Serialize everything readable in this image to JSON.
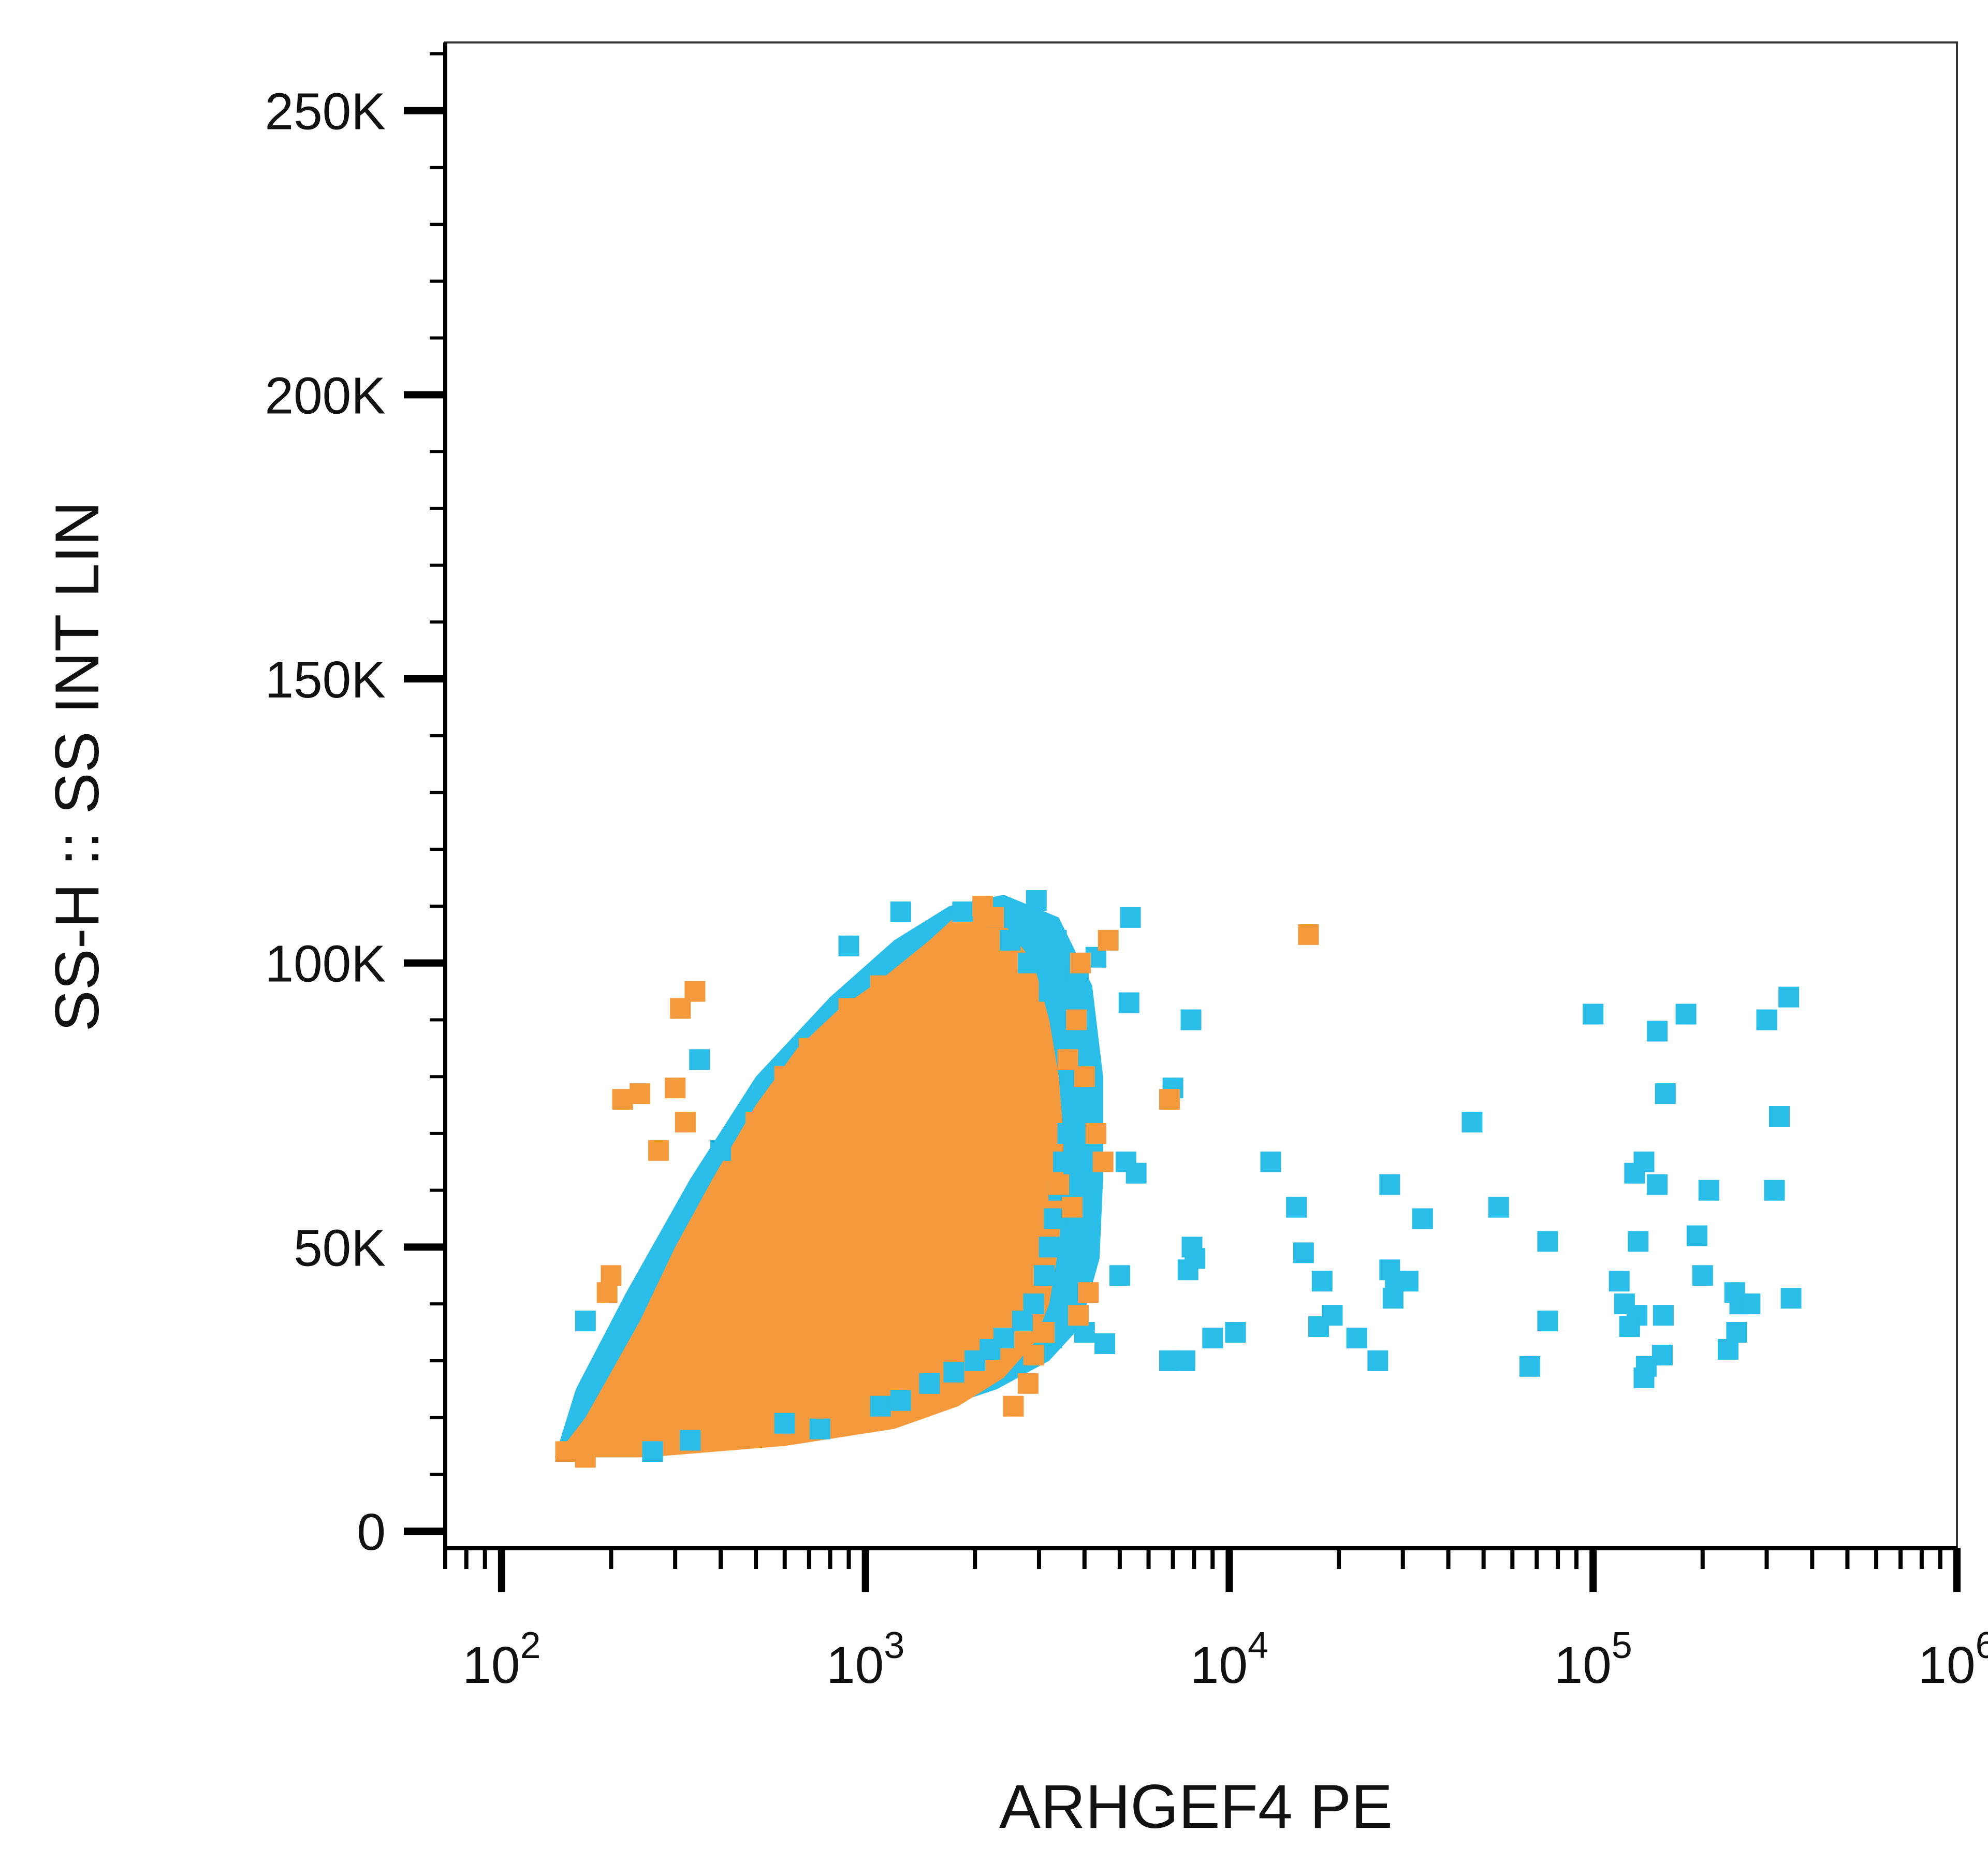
{
  "chart_data": {
    "type": "scatter",
    "title": "",
    "xlabel": "ARHGEF4 PE",
    "ylabel": "SS-H :: SS INT LIN",
    "x_scale": "log",
    "y_scale": "linear",
    "xlim": [
      70,
      1000000
    ],
    "ylim": [
      -3000,
      262000
    ],
    "x_ticks": [
      {
        "value": 100,
        "base": "10",
        "exp": "2"
      },
      {
        "value": 1000,
        "base": "10",
        "exp": "3"
      },
      {
        "value": 10000,
        "base": "10",
        "exp": "4"
      },
      {
        "value": 100000,
        "base": "10",
        "exp": "5"
      },
      {
        "value": 1000000,
        "base": "10",
        "exp": "6"
      }
    ],
    "y_ticks": [
      {
        "value": 0,
        "label": "0"
      },
      {
        "value": 50000,
        "label": "50K"
      },
      {
        "value": 100000,
        "label": "100K"
      },
      {
        "value": 150000,
        "label": "150K"
      },
      {
        "value": 200000,
        "label": "200K"
      },
      {
        "value": 250000,
        "label": "250K"
      }
    ],
    "grid": false,
    "legend": "none",
    "colors": {
      "control": "#29bde8",
      "stained": "#f59a3c",
      "axis": "#000000",
      "frame": "#333333"
    },
    "series": [
      {
        "color": "#29bde8",
        "points": [
          [
            1250,
            109000
          ],
          [
            1850,
            109000
          ],
          [
            2950,
            111000
          ],
          [
            2300,
            108000
          ],
          [
            3350,
            104000
          ],
          [
            5350,
            108000
          ],
          [
            4300,
            101000
          ],
          [
            3850,
            98000
          ],
          [
            900,
            103000
          ],
          [
            5300,
            93000
          ],
          [
            7850,
            90000
          ],
          [
            7000,
            78000
          ],
          [
            5200,
            65000
          ],
          [
            5550,
            63000
          ],
          [
            5000,
            45000
          ],
          [
            8050,
            48000
          ],
          [
            7700,
            46000
          ],
          [
            7900,
            50000
          ],
          [
            9000,
            34000
          ],
          [
            10400,
            35000
          ],
          [
            7550,
            30000
          ],
          [
            6850,
            30000
          ],
          [
            4000,
            35000
          ],
          [
            4550,
            33000
          ],
          [
            3250,
            34000
          ],
          [
            3650,
            40000
          ],
          [
            13000,
            65000
          ],
          [
            15300,
            57000
          ],
          [
            16000,
            49000
          ],
          [
            18000,
            44000
          ],
          [
            17600,
            36000
          ],
          [
            19200,
            38000
          ],
          [
            22400,
            34000
          ],
          [
            25600,
            30000
          ],
          [
            27600,
            61000
          ],
          [
            28600,
            44000
          ],
          [
            28200,
            41000
          ],
          [
            27600,
            46000
          ],
          [
            31000,
            44000
          ],
          [
            34000,
            55000
          ],
          [
            46500,
            72000
          ],
          [
            55000,
            57000
          ],
          [
            75000,
            51000
          ],
          [
            75000,
            37000
          ],
          [
            67000,
            29000
          ],
          [
            100000,
            91000
          ],
          [
            118000,
            44000
          ],
          [
            122000,
            40000
          ],
          [
            132000,
            38000
          ],
          [
            126000,
            36000
          ],
          [
            133000,
            51000
          ],
          [
            130000,
            63000
          ],
          [
            138000,
            65000
          ],
          [
            150000,
            61000
          ],
          [
            150000,
            88000
          ],
          [
            155000,
            31000
          ],
          [
            138000,
            27000
          ],
          [
            140000,
            29000
          ],
          [
            158000,
            77000
          ],
          [
            156000,
            38000
          ],
          [
            180000,
            91000
          ],
          [
            193000,
            52000
          ],
          [
            200000,
            45000
          ],
          [
            208000,
            60000
          ],
          [
            235000,
            32000
          ],
          [
            248000,
            35000
          ],
          [
            253000,
            40000
          ],
          [
            245000,
            42000
          ],
          [
            270000,
            40000
          ],
          [
            300000,
            90000
          ],
          [
            315000,
            60000
          ],
          [
            325000,
            73000
          ],
          [
            345000,
            94000
          ],
          [
            350000,
            41000
          ],
          [
            170,
            37000
          ],
          [
            400,
            67000
          ],
          [
            350,
            83000
          ],
          [
            260,
            14000
          ],
          [
            330,
            16000
          ],
          [
            600,
            19000
          ],
          [
            750,
            18000
          ],
          [
            1100,
            22000
          ],
          [
            1250,
            23000
          ],
          [
            1500,
            26000
          ],
          [
            1750,
            28000
          ],
          [
            2000,
            30000
          ],
          [
            2200,
            32000
          ],
          [
            2400,
            34000
          ],
          [
            2700,
            37000
          ],
          [
            2900,
            40000
          ],
          [
            3100,
            45000
          ],
          [
            3200,
            50000
          ],
          [
            3300,
            55000
          ],
          [
            3400,
            60000
          ],
          [
            3500,
            65000
          ],
          [
            3600,
            70000
          ],
          [
            3700,
            75000
          ],
          [
            3750,
            80000
          ],
          [
            3800,
            85000
          ],
          [
            3500,
            90000
          ],
          [
            3200,
            95000
          ],
          [
            2800,
            100000
          ],
          [
            2500,
            104000
          ]
        ]
      },
      {
        "color": "#f59a3c",
        "points": [
          [
            150,
            14000
          ],
          [
            170,
            13000
          ],
          [
            190,
            15000
          ],
          [
            215,
            76000
          ],
          [
            240,
            77000
          ],
          [
            310,
            92000
          ],
          [
            340,
            95000
          ],
          [
            300,
            78000
          ],
          [
            270,
            67000
          ],
          [
            320,
            72000
          ],
          [
            195,
            42000
          ],
          [
            200,
            45000
          ],
          [
            2100,
            110000
          ],
          [
            2250,
            108000
          ],
          [
            4650,
            104000
          ],
          [
            2550,
            22000
          ],
          [
            3850,
            38000
          ],
          [
            4100,
            42000
          ],
          [
            16500,
            105000
          ],
          [
            6850,
            76000
          ],
          [
            3600,
            83000
          ],
          [
            4000,
            80000
          ],
          [
            3400,
            61000
          ],
          [
            3700,
            57000
          ],
          [
            3100,
            35000
          ],
          [
            2900,
            31000
          ],
          [
            2800,
            26000
          ],
          [
            4300,
            70000
          ],
          [
            4500,
            65000
          ],
          [
            3800,
            90000
          ],
          [
            3900,
            100000
          ],
          [
            2600,
            95000
          ],
          [
            1400,
            94000
          ],
          [
            1100,
            96000
          ],
          [
            900,
            92000
          ],
          [
            700,
            85000
          ],
          [
            600,
            80000
          ],
          [
            500,
            72000
          ]
        ]
      }
    ]
  }
}
